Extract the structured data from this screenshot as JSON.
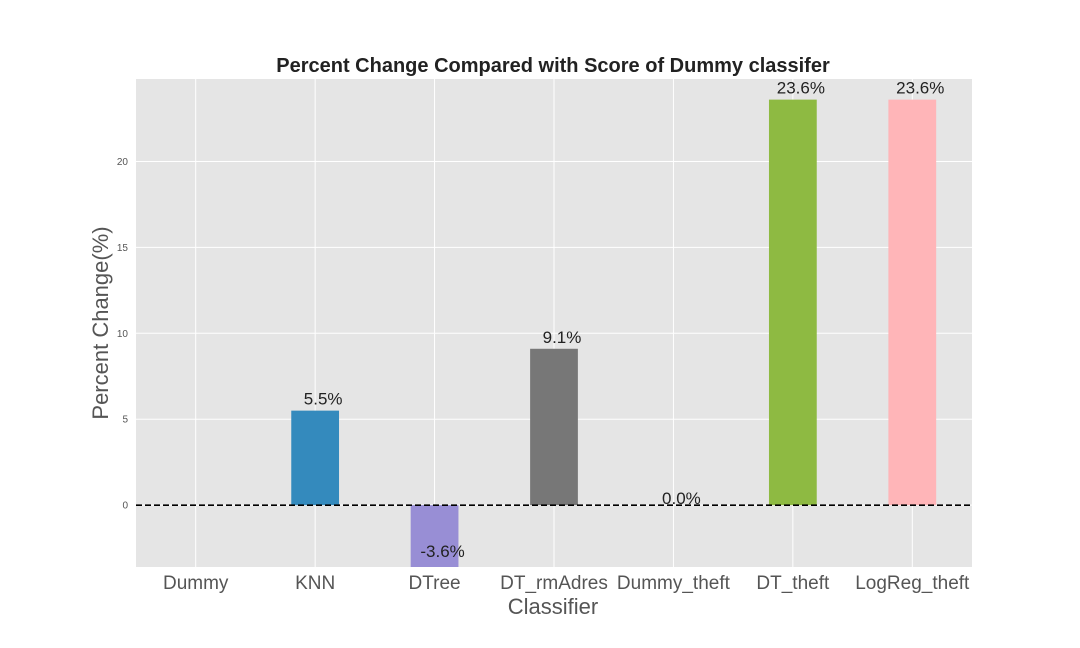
{
  "chart_data": {
    "type": "bar",
    "title": "Percent Change Compared with Score of Dummy classifer",
    "xlabel": "Classifier",
    "ylabel": "Percent Change(%)",
    "categories": [
      "Dummy",
      "KNN",
      "DTree",
      "DT_rmAdres",
      "Dummy_theft",
      "DT_theft",
      "LogReg_theft"
    ],
    "values": [
      0.0,
      5.5,
      -3.6,
      9.1,
      0.0,
      23.6,
      23.6
    ],
    "data_labels": [
      "",
      "5.5%",
      "-3.6%",
      "9.1%",
      "0.0%",
      "23.6%",
      "23.6%"
    ],
    "colors": [
      "#348abd",
      "#348abd",
      "#988ed5",
      "#777777",
      "#fbc15e",
      "#8eba42",
      "#ffb5b8"
    ],
    "yticks": [
      0,
      5,
      10,
      15,
      20
    ],
    "ylim": [
      -3.6,
      24.8
    ],
    "grid": true,
    "reference_line": {
      "y": 0,
      "style": "dashed",
      "color": "#000000"
    },
    "background_color": "#e5e5e5"
  }
}
